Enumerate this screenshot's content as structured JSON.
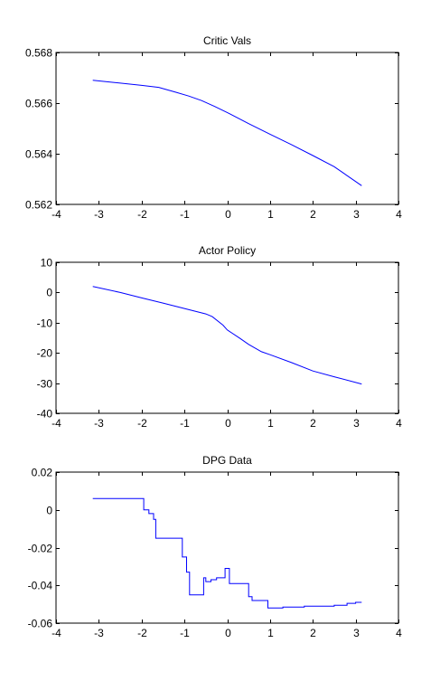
{
  "chart_data": [
    {
      "type": "line",
      "title": "Critic Vals",
      "xlabel": "",
      "ylabel": "",
      "xlim": [
        -4,
        4
      ],
      "ylim": [
        0.562,
        0.568
      ],
      "xticks": [
        -4,
        -3,
        -2,
        -1,
        0,
        1,
        2,
        3,
        4
      ],
      "xtick_labels": [
        "-4",
        "-3",
        "-2",
        "-1",
        "0",
        "1",
        "2",
        "3",
        "4"
      ],
      "yticks": [
        0.562,
        0.564,
        0.566,
        0.568
      ],
      "ytick_labels": [
        "0.562",
        "0.564",
        "0.566",
        "0.568"
      ],
      "grid": false,
      "line_color": "#0000ff",
      "series": [
        {
          "x": [
            -3.14,
            -2.5,
            -2.0,
            -1.6,
            -1.2,
            -0.9,
            -0.6,
            -0.3,
            0.0,
            0.5,
            1.0,
            1.5,
            2.0,
            2.5,
            3.14
          ],
          "y": [
            0.5669,
            0.56679,
            0.5667,
            0.56662,
            0.56643,
            0.56628,
            0.5661,
            0.56587,
            0.56563,
            0.56519,
            0.56477,
            0.56436,
            0.56393,
            0.56349,
            0.56274
          ]
        }
      ]
    },
    {
      "type": "line",
      "title": "Actor Policy",
      "xlabel": "",
      "ylabel": "",
      "xlim": [
        -4,
        4
      ],
      "ylim": [
        -40,
        10
      ],
      "xticks": [
        -4,
        -3,
        -2,
        -1,
        0,
        1,
        2,
        3,
        4
      ],
      "xtick_labels": [
        "-4",
        "-3",
        "-2",
        "-1",
        "0",
        "1",
        "2",
        "3",
        "4"
      ],
      "yticks": [
        -40,
        -30,
        -20,
        -10,
        0,
        10
      ],
      "ytick_labels": [
        "-40",
        "-30",
        "-20",
        "-10",
        "0",
        "10"
      ],
      "grid": false,
      "line_color": "#0000ff",
      "series": [
        {
          "x": [
            -3.14,
            -2.5,
            -2.0,
            -1.5,
            -1.0,
            -0.5,
            -0.35,
            -0.1,
            0.0,
            0.3,
            0.5,
            0.8,
            1.0,
            1.5,
            2.0,
            2.5,
            3.14
          ],
          "y": [
            2,
            0,
            -1.8,
            -3.5,
            -5.3,
            -7.1,
            -8,
            -10.8,
            -12.4,
            -15.2,
            -17.2,
            -19.6,
            -20.6,
            -23.2,
            -26.0,
            -27.9,
            -30.3
          ]
        }
      ]
    },
    {
      "type": "line",
      "title": "DPG Data",
      "xlabel": "",
      "ylabel": "",
      "xlim": [
        -4,
        4
      ],
      "ylim": [
        -0.06,
        0.02
      ],
      "xticks": [
        -4,
        -3,
        -2,
        -1,
        0,
        1,
        2,
        3,
        4
      ],
      "xtick_labels": [
        "-4",
        "-3",
        "-2",
        "-1",
        "0",
        "1",
        "2",
        "3",
        "4"
      ],
      "yticks": [
        -0.06,
        -0.04,
        -0.02,
        0,
        0.02
      ],
      "ytick_labels": [
        "-0.06",
        "-0.04",
        "-0.02",
        "0",
        "0.02"
      ],
      "grid": false,
      "line_color": "#0000ff",
      "series": [
        {
          "x": [
            -3.14,
            -1.95,
            -1.95,
            -1.83,
            -1.83,
            -1.72,
            -1.72,
            -1.67,
            -1.67,
            -1.6,
            -1.6,
            -1.05,
            -1.05,
            -0.95,
            -0.95,
            -0.88,
            -0.88,
            -0.55,
            -0.55,
            -0.5,
            -0.5,
            -0.38,
            -0.38,
            -0.25,
            -0.25,
            -0.05,
            -0.05,
            0.05,
            0.05,
            0.15,
            0.15,
            0.5,
            0.5,
            0.58,
            0.58,
            0.65,
            0.65,
            0.95,
            0.95,
            1.3,
            1.3,
            1.8,
            1.8,
            2.2,
            2.2,
            2.5,
            2.5,
            2.8,
            2.8,
            3.0,
            3.0,
            3.14
          ],
          "y": [
            0.006,
            0.006,
            0.0,
            0.0,
            -0.002,
            -0.002,
            -0.005,
            -0.005,
            -0.015,
            -0.015,
            -0.015,
            -0.015,
            -0.025,
            -0.025,
            -0.033,
            -0.033,
            -0.045,
            -0.045,
            -0.036,
            -0.036,
            -0.038,
            -0.038,
            -0.037,
            -0.037,
            -0.036,
            -0.036,
            -0.031,
            -0.031,
            -0.039,
            -0.039,
            -0.039,
            -0.039,
            -0.046,
            -0.046,
            -0.048,
            -0.048,
            -0.048,
            -0.048,
            -0.052,
            -0.052,
            -0.0515,
            -0.0515,
            -0.051,
            -0.051,
            -0.051,
            -0.051,
            -0.0505,
            -0.0505,
            -0.0495,
            -0.0495,
            -0.049,
            -0.049
          ]
        }
      ]
    }
  ]
}
